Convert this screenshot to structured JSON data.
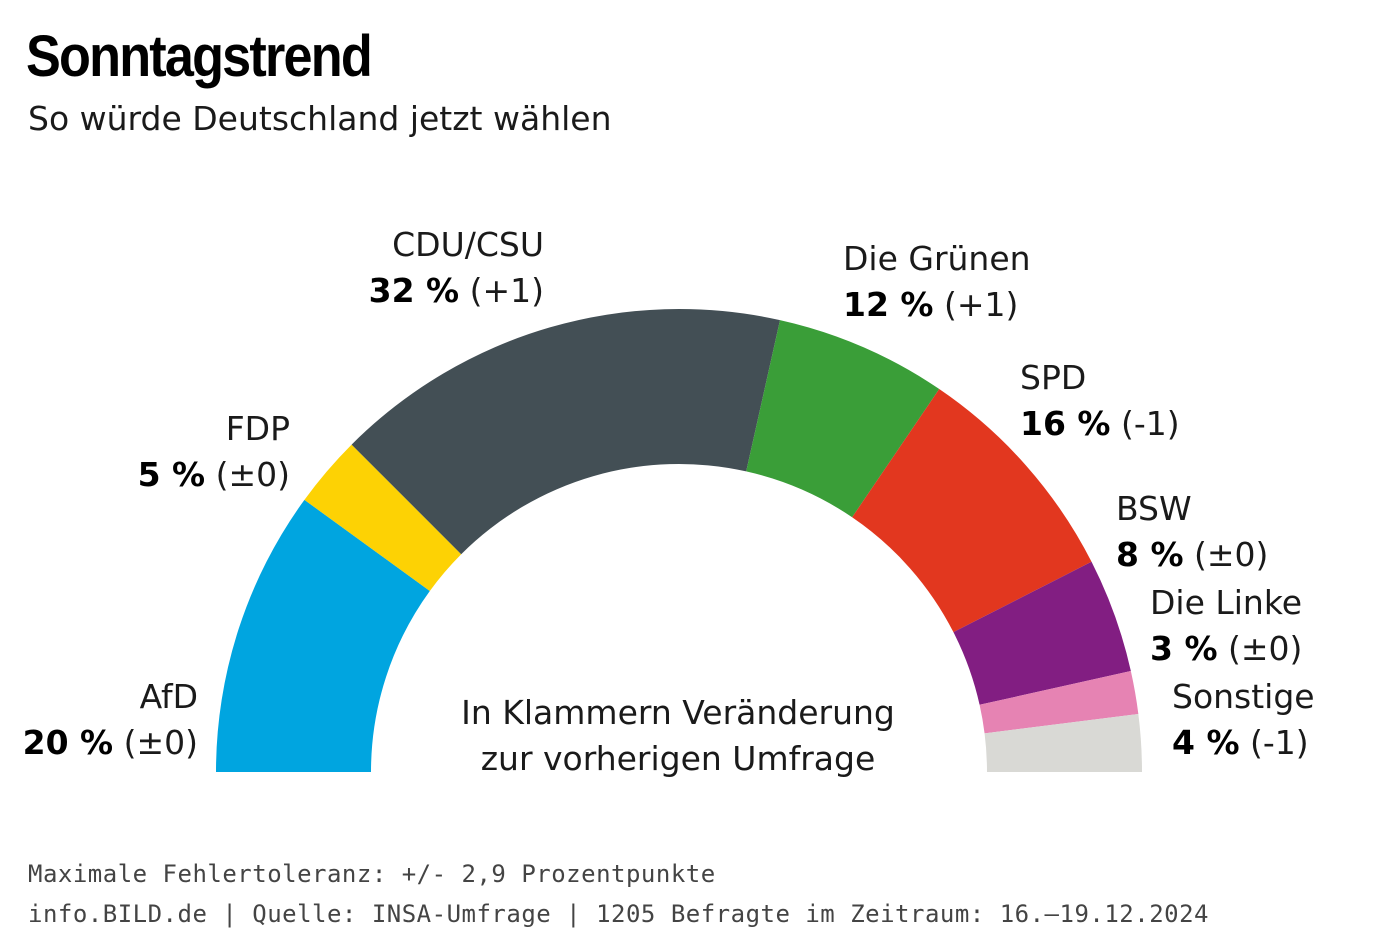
{
  "header": {
    "title": "Sonntagstrend",
    "subtitle": "So würde Deutschland jetzt wählen"
  },
  "chart_data": {
    "type": "pie",
    "variant": "half-donut",
    "slices": [
      {
        "name": "AfD",
        "value": 20,
        "pct_label": "20 %",
        "change": "(±0)",
        "color": "#00a5e0"
      },
      {
        "name": "FDP",
        "value": 5,
        "pct_label": "5 %",
        "change": "(±0)",
        "color": "#fdd204"
      },
      {
        "name": "CDU/CSU",
        "value": 32,
        "pct_label": "32 %",
        "change": "(+1)",
        "color": "#434f55"
      },
      {
        "name": "Die Grünen",
        "value": 12,
        "pct_label": "12 %",
        "change": "(+1)",
        "color": "#3a9e38"
      },
      {
        "name": "SPD",
        "value": 16,
        "pct_label": "16 %",
        "change": "(-1)",
        "color": "#e2371f"
      },
      {
        "name": "BSW",
        "value": 8,
        "pct_label": "8 %",
        "change": "(±0)",
        "color": "#821e82"
      },
      {
        "name": "Die Linke",
        "value": 3,
        "pct_label": "3 %",
        "change": "(±0)",
        "color": "#e683b3"
      },
      {
        "name": "Sonstige",
        "value": 4,
        "pct_label": "4 %",
        "change": "(-1)",
        "color": "#d9d9d5"
      }
    ],
    "note_lines": [
      "In Klammern Veränderung",
      "zur vorherigen Umfrage"
    ]
  },
  "footer": {
    "line1": "Maximale Fehlertoleranz: +/- 2,9 Prozentpunkte",
    "line2": "info.BILD.de | Quelle: INSA-Umfrage | 1205 Befragte im Zeitraum: 16.–19.12.2024"
  }
}
